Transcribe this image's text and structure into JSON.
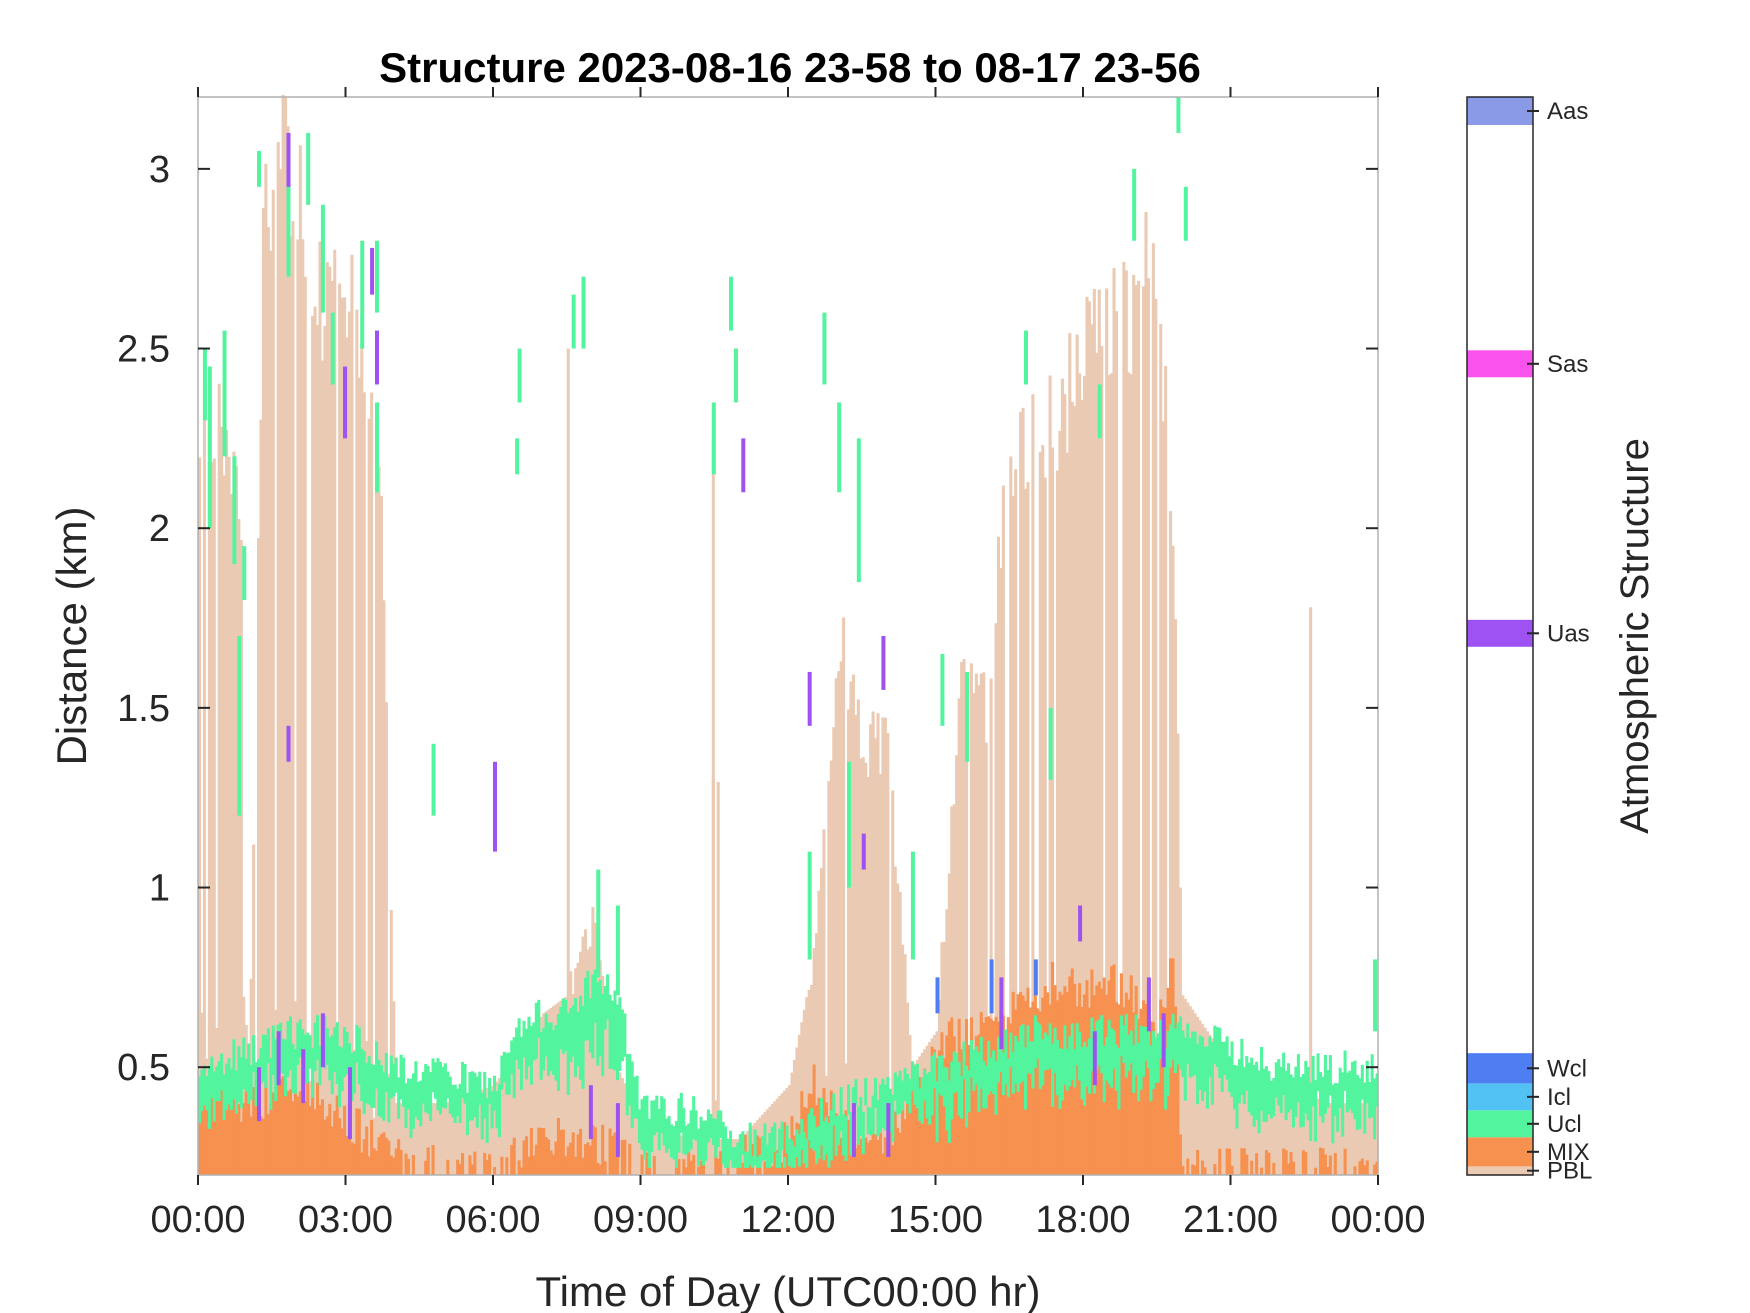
{
  "chart_data": {
    "type": "heatmap",
    "title": "Structure 2023-08-16 23-58 to 08-17 23-56",
    "xlabel": "Time of Day (UTC00:00 hr)",
    "ylabel": "Distance (km)",
    "xlim": [
      0,
      24
    ],
    "ylim": [
      0.2,
      3.2
    ],
    "x_tick_labels": [
      "00:00",
      "03:00",
      "06:00",
      "09:00",
      "12:00",
      "15:00",
      "18:00",
      "21:00",
      "00:00"
    ],
    "x_ticks": [
      0,
      3,
      6,
      9,
      12,
      15,
      18,
      21,
      24
    ],
    "y_ticks": [
      0.5,
      1,
      1.5,
      2,
      2.5,
      3
    ],
    "y_tick_labels": [
      "0.5",
      "1",
      "1.5",
      "2",
      "2.5",
      "3"
    ],
    "colorbar": {
      "title": "Atmospheric Structure",
      "classes": [
        {
          "name": "PBL",
          "color": "#ebcab4"
        },
        {
          "name": "MIX",
          "color": "#f79150"
        },
        {
          "name": "Ucl",
          "color": "#52f49e"
        },
        {
          "name": "Icl",
          "color": "#52c2f4"
        },
        {
          "name": "Wcl",
          "color": "#4f7ef2"
        },
        {
          "name": "Uas",
          "color": "#9e52f2"
        },
        {
          "name": "Sas",
          "color": "#f952ed"
        },
        {
          "name": "Aas",
          "color": "#8b9ae6"
        }
      ]
    },
    "pbl_profile": {
      "hours": [
        0,
        0.3,
        0.6,
        0.9,
        1.0,
        1.3,
        1.6,
        1.9,
        2.2,
        2.5,
        2.8,
        3.1,
        3.4,
        3.7,
        4.0,
        5.0,
        6.0,
        6.5,
        7.0,
        7.5,
        8.0,
        8.5,
        9.0,
        10.0,
        10.4,
        10.5,
        10.6,
        11.0,
        12.0,
        12.5,
        13.0,
        13.5,
        14.0,
        14.5,
        15.0,
        15.5,
        16.0,
        16.5,
        17.0,
        17.5,
        18.0,
        18.3,
        18.6,
        19.0,
        19.3,
        19.6,
        19.8,
        20.0,
        21.0,
        22.0,
        23.0,
        24.0
      ],
      "top_km": [
        2.2,
        2.3,
        2.2,
        2.0,
        0.35,
        2.9,
        3.0,
        3.0,
        2.8,
        2.6,
        2.7,
        2.7,
        2.5,
        2.1,
        0.4,
        0.4,
        0.45,
        0.55,
        0.65,
        0.7,
        0.9,
        0.5,
        0.35,
        0.3,
        0.3,
        2.2,
        0.3,
        0.3,
        0.45,
        0.8,
        1.7,
        1.4,
        1.4,
        0.5,
        0.6,
        1.6,
        1.5,
        2.2,
        2.3,
        2.3,
        2.5,
        2.6,
        2.6,
        2.6,
        2.8,
        2.4,
        2.0,
        0.7,
        0.5,
        0.45,
        0.4,
        0.4
      ],
      "spikes": [
        {
          "hour": 7.5,
          "top_km": 2.5
        },
        {
          "hour": 10.45,
          "top_km": 2.25
        },
        {
          "hour": 22.6,
          "top_km": 1.78
        }
      ]
    },
    "mix_profile": {
      "hours": [
        0,
        1,
        2,
        3,
        4,
        5,
        6,
        7,
        8,
        9,
        10,
        11,
        12,
        12.5,
        13,
        14,
        15,
        15.5,
        16,
        16.5,
        17,
        17.5,
        18,
        18.5,
        19,
        19.5,
        19.8,
        20,
        21,
        22,
        23,
        24
      ],
      "top_km": [
        0.45,
        0.4,
        0.45,
        0.35,
        0.25,
        0.22,
        0.22,
        0.3,
        0.3,
        0.22,
        0.22,
        0.25,
        0.3,
        0.45,
        0.35,
        0.3,
        0.55,
        0.6,
        0.6,
        0.65,
        0.7,
        0.75,
        0.7,
        0.75,
        0.7,
        0.6,
        0.8,
        0.22,
        0.22,
        0.22,
        0.22,
        0.22
      ]
    },
    "cloud_band": {
      "hours": [
        0,
        1,
        2,
        3,
        4,
        5,
        6,
        6.5,
        7,
        7.5,
        8,
        8.5,
        9,
        10,
        11,
        12,
        13,
        14,
        15,
        16,
        17,
        18,
        19,
        20,
        21,
        22,
        23,
        24
      ],
      "top_km": [
        0.5,
        0.55,
        0.6,
        0.6,
        0.5,
        0.48,
        0.45,
        0.6,
        0.65,
        0.65,
        0.75,
        0.7,
        0.38,
        0.38,
        0.3,
        0.3,
        0.4,
        0.45,
        0.5,
        0.55,
        0.6,
        0.6,
        0.6,
        0.6,
        0.55,
        0.5,
        0.5,
        0.5
      ],
      "thickness_km": [
        0.15,
        0.15,
        0.15,
        0.15,
        0.15,
        0.12,
        0.12,
        0.15,
        0.15,
        0.2,
        0.2,
        0.2,
        0.15,
        0.12,
        0.1,
        0.1,
        0.12,
        0.12,
        0.15,
        0.15,
        0.15,
        0.15,
        0.15,
        0.15,
        0.15,
        0.15,
        0.15,
        0.15
      ]
    },
    "ucl_streaks": [
      {
        "hour": 0.1,
        "y0": 2.3,
        "y1": 2.5
      },
      {
        "hour": 0.2,
        "y0": 2.0,
        "y1": 2.45
      },
      {
        "hour": 0.5,
        "y0": 2.2,
        "y1": 2.55
      },
      {
        "hour": 0.7,
        "y0": 1.9,
        "y1": 2.2
      },
      {
        "hour": 0.8,
        "y0": 1.2,
        "y1": 1.7
      },
      {
        "hour": 0.9,
        "y0": 1.8,
        "y1": 1.95
      },
      {
        "hour": 1.2,
        "y0": 2.95,
        "y1": 3.05
      },
      {
        "hour": 1.8,
        "y0": 2.7,
        "y1": 3.0
      },
      {
        "hour": 2.2,
        "y0": 2.9,
        "y1": 3.1
      },
      {
        "hour": 2.5,
        "y0": 2.6,
        "y1": 2.9
      },
      {
        "hour": 2.7,
        "y0": 2.4,
        "y1": 2.6
      },
      {
        "hour": 3.3,
        "y0": 2.5,
        "y1": 2.8
      },
      {
        "hour": 3.6,
        "y0": 2.6,
        "y1": 2.8
      },
      {
        "hour": 3.6,
        "y0": 2.1,
        "y1": 2.35
      },
      {
        "hour": 4.75,
        "y0": 1.2,
        "y1": 1.4
      },
      {
        "hour": 6.5,
        "y0": 2.35,
        "y1": 2.5
      },
      {
        "hour": 6.45,
        "y0": 2.15,
        "y1": 2.25
      },
      {
        "hour": 7.6,
        "y0": 2.5,
        "y1": 2.65
      },
      {
        "hour": 7.8,
        "y0": 2.5,
        "y1": 2.7
      },
      {
        "hour": 8.1,
        "y0": 0.75,
        "y1": 1.05
      },
      {
        "hour": 8.5,
        "y0": 0.7,
        "y1": 0.95
      },
      {
        "hour": 10.45,
        "y0": 2.15,
        "y1": 2.35
      },
      {
        "hour": 10.8,
        "y0": 2.55,
        "y1": 2.7
      },
      {
        "hour": 10.9,
        "y0": 2.35,
        "y1": 2.5
      },
      {
        "hour": 12.7,
        "y0": 2.4,
        "y1": 2.6
      },
      {
        "hour": 13.0,
        "y0": 2.1,
        "y1": 2.35
      },
      {
        "hour": 13.4,
        "y0": 1.85,
        "y1": 2.25
      },
      {
        "hour": 12.4,
        "y0": 0.8,
        "y1": 1.1
      },
      {
        "hour": 13.2,
        "y0": 1.0,
        "y1": 1.35
      },
      {
        "hour": 14.5,
        "y0": 0.8,
        "y1": 1.1
      },
      {
        "hour": 15.1,
        "y0": 1.45,
        "y1": 1.65
      },
      {
        "hour": 15.6,
        "y0": 1.35,
        "y1": 1.6
      },
      {
        "hour": 16.8,
        "y0": 2.4,
        "y1": 2.55
      },
      {
        "hour": 17.3,
        "y0": 1.3,
        "y1": 1.5
      },
      {
        "hour": 18.3,
        "y0": 2.25,
        "y1": 2.4
      },
      {
        "hour": 19.0,
        "y0": 2.8,
        "y1": 3.0
      },
      {
        "hour": 19.9,
        "y0": 3.1,
        "y1": 3.2
      },
      {
        "hour": 20.05,
        "y0": 2.8,
        "y1": 2.95
      },
      {
        "hour": 23.9,
        "y0": 0.6,
        "y1": 0.8
      }
    ],
    "uas_streaks": [
      {
        "hour": 1.8,
        "y0": 2.95,
        "y1": 3.1
      },
      {
        "hour": 3.5,
        "y0": 2.65,
        "y1": 2.78
      },
      {
        "hour": 3.6,
        "y0": 2.4,
        "y1": 2.55
      },
      {
        "hour": 2.95,
        "y0": 2.25,
        "y1": 2.45
      },
      {
        "hour": 1.8,
        "y0": 1.35,
        "y1": 1.45
      },
      {
        "hour": 6.0,
        "y0": 1.1,
        "y1": 1.35
      },
      {
        "hour": 11.05,
        "y0": 2.1,
        "y1": 2.25
      },
      {
        "hour": 12.4,
        "y0": 1.45,
        "y1": 1.6
      },
      {
        "hour": 13.9,
        "y0": 1.55,
        "y1": 1.7
      },
      {
        "hour": 13.5,
        "y0": 1.05,
        "y1": 1.15
      },
      {
        "hour": 1.2,
        "y0": 0.35,
        "y1": 0.5
      },
      {
        "hour": 1.6,
        "y0": 0.45,
        "y1": 0.6
      },
      {
        "hour": 2.1,
        "y0": 0.4,
        "y1": 0.55
      },
      {
        "hour": 2.5,
        "y0": 0.5,
        "y1": 0.65
      },
      {
        "hour": 3.05,
        "y0": 0.3,
        "y1": 0.5
      },
      {
        "hour": 7.95,
        "y0": 0.3,
        "y1": 0.45
      },
      {
        "hour": 8.5,
        "y0": 0.25,
        "y1": 0.4
      },
      {
        "hour": 13.3,
        "y0": 0.25,
        "y1": 0.4
      },
      {
        "hour": 14.0,
        "y0": 0.25,
        "y1": 0.4
      },
      {
        "hour": 16.3,
        "y0": 0.55,
        "y1": 0.75
      },
      {
        "hour": 17.9,
        "y0": 0.85,
        "y1": 0.95
      },
      {
        "hour": 18.2,
        "y0": 0.45,
        "y1": 0.6
      },
      {
        "hour": 19.3,
        "y0": 0.6,
        "y1": 0.75
      },
      {
        "hour": 19.6,
        "y0": 0.5,
        "y1": 0.65
      }
    ],
    "wcl_streaks": [
      {
        "hour": 15.0,
        "y0": 0.65,
        "y1": 0.75
      },
      {
        "hour": 16.1,
        "y0": 0.65,
        "y1": 0.8
      },
      {
        "hour": 17.0,
        "y0": 0.7,
        "y1": 0.8
      }
    ]
  }
}
